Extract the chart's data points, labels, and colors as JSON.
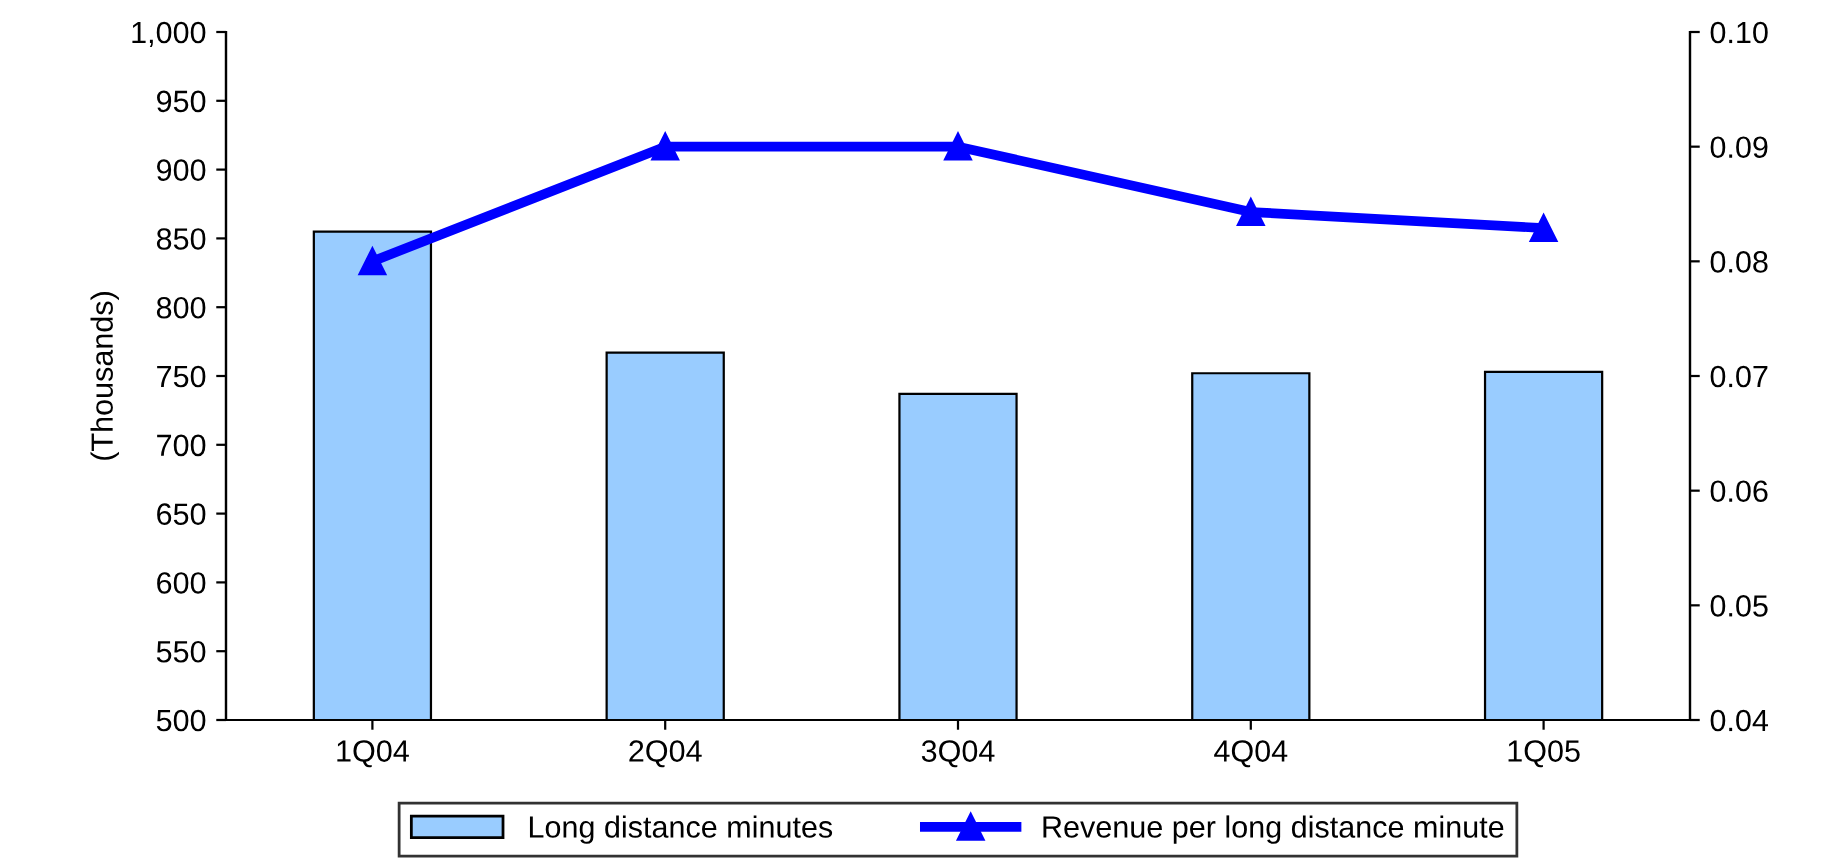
{
  "chart_data": {
    "type": "bar",
    "categories": [
      "1Q04",
      "2Q04",
      "3Q04",
      "4Q04",
      "1Q05"
    ],
    "ylabel": "(Thousands)",
    "series": [
      {
        "name": "Long distance minutes",
        "color": "#99ccff",
        "values": [
          855,
          767,
          737,
          752,
          753
        ]
      },
      {
        "name": "Revenue per long distance minute",
        "type": "line",
        "axis": "y2",
        "color": "#0000ff",
        "values": [
          0.08,
          0.09,
          0.09,
          0.0843,
          0.0829
        ]
      }
    ],
    "ylim": [
      500,
      1000
    ],
    "yticks": [
      500,
      550,
      600,
      650,
      700,
      750,
      800,
      850,
      900,
      950,
      {
        "value": 1000,
        "label": "1,000"
      }
    ],
    "y2lim": [
      0.04,
      0.1
    ],
    "y2ticks": [
      {
        "value": 0.04,
        "label": "0.04"
      },
      {
        "value": 0.05,
        "label": "0.05"
      },
      {
        "value": 0.06,
        "label": "0.06"
      },
      {
        "value": 0.07,
        "label": "0.07"
      },
      {
        "value": 0.08,
        "label": "0.08"
      },
      {
        "value": 0.09,
        "label": "0.09"
      },
      {
        "value": 0.1,
        "label": "0.10"
      }
    ],
    "marker": "triangle",
    "line_style": "solid",
    "grid": false,
    "legend": "bottom"
  }
}
